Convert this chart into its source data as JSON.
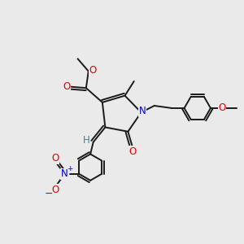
{
  "background_color": "#eaeaea",
  "figsize": [
    3.0,
    3.0
  ],
  "dpi": 100,
  "bond_color": "#1a1a1a",
  "bond_lw": 1.4,
  "atom_colors": {
    "O": "#dd0000",
    "N_blue": "#0000cc",
    "H": "#3a8888"
  },
  "font_size": 8.5,
  "font_size_small": 7.5
}
